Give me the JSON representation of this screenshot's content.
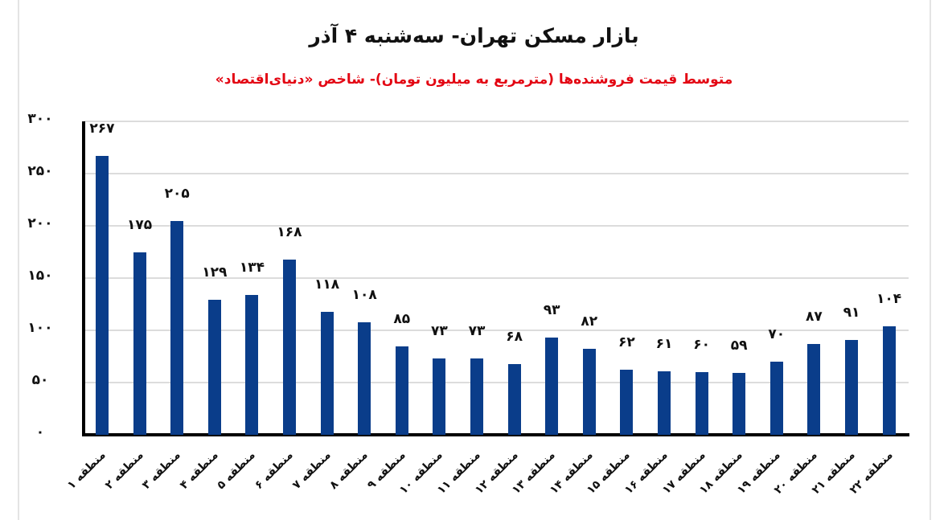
{
  "header": {
    "title": "بازار مسکن تهران- سه‌شنبه ۴ آذر",
    "subtitle": "متوسط قیمت فروشنده‌ها (مترمربع به میلیون تومان)- شاخص «دنیای‌اقتصاد»"
  },
  "colors": {
    "bar": "#0a3d8a",
    "subtitle": "#e30613",
    "title": "#111111",
    "grid": "#dcdcdc"
  },
  "y_axis": {
    "ticks": [
      "۰",
      "۵۰",
      "۱۰۰",
      "۱۵۰",
      "۲۰۰",
      "۲۵۰",
      "۳۰۰"
    ]
  },
  "bars": [
    {
      "label": "منطقه ۱",
      "value_text": "۲۶۷"
    },
    {
      "label": "منطقه ۲",
      "value_text": "۱۷۵"
    },
    {
      "label": "منطقه ۳",
      "value_text": "۲۰۵"
    },
    {
      "label": "منطقه ۴",
      "value_text": "۱۲۹"
    },
    {
      "label": "منطقه ۵",
      "value_text": "۱۳۴"
    },
    {
      "label": "منطقه ۶",
      "value_text": "۱۶۸"
    },
    {
      "label": "منطقه ۷",
      "value_text": "۱۱۸"
    },
    {
      "label": "منطقه ۸",
      "value_text": "۱۰۸"
    },
    {
      "label": "منطقه ۹",
      "value_text": "۸۵"
    },
    {
      "label": "منطقه ۱۰",
      "value_text": "۷۳"
    },
    {
      "label": "منطقه ۱۱",
      "value_text": "۷۳"
    },
    {
      "label": "منطقه ۱۲",
      "value_text": "۶۸"
    },
    {
      "label": "منطقه ۱۳",
      "value_text": "۹۳"
    },
    {
      "label": "منطقه ۱۴",
      "value_text": "۸۲"
    },
    {
      "label": "منطقه ۱۵",
      "value_text": "۶۲"
    },
    {
      "label": "منطقه ۱۶",
      "value_text": "۶۱"
    },
    {
      "label": "منطقه ۱۷",
      "value_text": "۶۰"
    },
    {
      "label": "منطقه ۱۸",
      "value_text": "۵۹"
    },
    {
      "label": "منطقه ۱۹",
      "value_text": "۷۰"
    },
    {
      "label": "منطقه ۲۰",
      "value_text": "۸۷"
    },
    {
      "label": "منطقه ۲۱",
      "value_text": "۹۱"
    },
    {
      "label": "منطقه ۲۲",
      "value_text": "۱۰۴"
    }
  ],
  "chart_data": {
    "type": "bar",
    "title": "بازار مسکن تهران- سه‌شنبه ۴ آذر",
    "subtitle": "متوسط قیمت فروشنده‌ها (مترمربع به میلیون تومان)- شاخص «دنیای‌اقتصاد»",
    "xlabel": "",
    "ylabel": "",
    "categories": [
      "منطقه ۱",
      "منطقه ۲",
      "منطقه ۳",
      "منطقه ۴",
      "منطقه ۵",
      "منطقه ۶",
      "منطقه ۷",
      "منطقه ۸",
      "منطقه ۹",
      "منطقه ۱۰",
      "منطقه ۱۱",
      "منطقه ۱۲",
      "منطقه ۱۳",
      "منطقه ۱۴",
      "منطقه ۱۵",
      "منطقه ۱۶",
      "منطقه ۱۷",
      "منطقه ۱۸",
      "منطقه ۱۹",
      "منطقه ۲۰",
      "منطقه ۲۱",
      "منطقه ۲۲"
    ],
    "values": [
      267,
      175,
      205,
      129,
      134,
      168,
      118,
      108,
      85,
      73,
      73,
      68,
      93,
      82,
      62,
      61,
      60,
      59,
      70,
      87,
      91,
      104
    ],
    "ylim": [
      0,
      300
    ],
    "yticks": [
      0,
      50,
      100,
      150,
      200,
      250,
      300
    ],
    "grid": true,
    "legend": null,
    "data_labels": true
  }
}
